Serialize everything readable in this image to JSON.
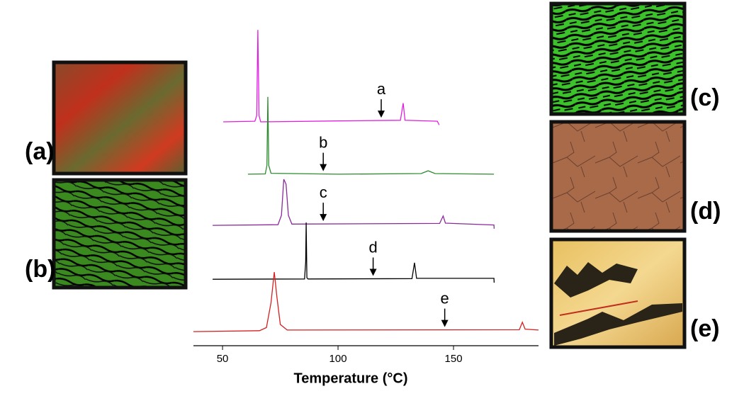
{
  "chart_data": {
    "type": "line",
    "x_label": "Temperature (°C)",
    "xlim": [
      37.4,
      186.8
    ],
    "xticks": [
      50,
      100,
      150
    ],
    "ylim": [
      0,
      100
    ],
    "series": [
      {
        "name": "a",
        "color": "#e020e0",
        "x": [
          50.3,
          64,
          64.8,
          65.3,
          65.8,
          66.5,
          100,
          127,
          128.2,
          129,
          143,
          143.8
        ],
        "values": [
          70,
          70.2,
          72,
          99.5,
          72,
          70,
          70.3,
          70.5,
          76,
          70.5,
          70.2,
          69
        ]
      },
      {
        "name": "b",
        "color": "#2e8b2e",
        "x": [
          61,
          68.5,
          69.2,
          69.6,
          70,
          71,
          100,
          136,
          139,
          142,
          167.5
        ],
        "values": [
          53.2,
          53.3,
          56,
          78,
          56,
          53.5,
          53.2,
          53.4,
          54.3,
          53.4,
          53.2
        ]
      },
      {
        "name": "c",
        "color": "#8a2a9a",
        "x": [
          45.7,
          74,
          75.5,
          76.5,
          77.5,
          78.5,
          80,
          144,
          145.5,
          146.5,
          167.5,
          167.6
        ],
        "values": [
          36.8,
          37,
          40,
          51.6,
          50,
          40,
          37.2,
          37.4,
          39.8,
          37.5,
          36.9,
          35.7
        ]
      },
      {
        "name": "d",
        "color": "#000000",
        "x": [
          45.7,
          85.5,
          86,
          86.2,
          86.5,
          87,
          132,
          133.1,
          134,
          167.5,
          167.6
        ],
        "values": [
          19.5,
          19.6,
          25,
          37.7,
          20,
          19.6,
          19.7,
          24.8,
          19.8,
          19.8,
          18.4
        ]
      },
      {
        "name": "e",
        "color": "#d42020",
        "x": [
          37.4,
          66,
          69,
          71,
          72.4,
          73.5,
          75,
          78,
          178.5,
          179.8,
          181,
          186.8
        ],
        "values": [
          2.7,
          3,
          4,
          12,
          21.8,
          14,
          5,
          3.2,
          3.3,
          5.7,
          3.5,
          3.2
        ]
      }
    ],
    "annotations": [
      {
        "text": "a",
        "x": 118.7
      },
      {
        "text": "b",
        "x": 93.6
      },
      {
        "text": "c",
        "x": 93.6
      },
      {
        "text": "d",
        "x": 115.2
      },
      {
        "text": "e",
        "x": 146.2
      }
    ]
  },
  "panels": [
    {
      "label": "(a)"
    },
    {
      "label": "(b)"
    },
    {
      "label": "(c)"
    },
    {
      "label": "(d)"
    },
    {
      "label": "(e)"
    }
  ]
}
